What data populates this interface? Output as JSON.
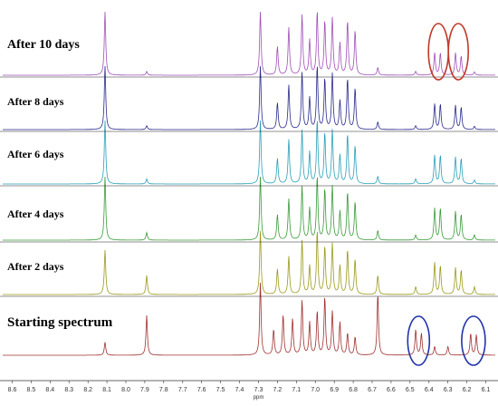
{
  "chart_data": {
    "type": "line",
    "title": "",
    "xlabel": "ppm",
    "ylabel": "",
    "xlim": [
      8.65,
      6.05
    ],
    "x_reversed": true,
    "grid": false,
    "xticks": [
      "8.6",
      "8.5",
      "8.4",
      "8.3",
      "8.2",
      "8.1",
      "8.0",
      "7.9",
      "7.8",
      "7.7",
      "7.6",
      "7.5",
      "7.4",
      "7.3",
      "7.2",
      "7.1",
      "7.0",
      "6.9",
      "6.8",
      "6.7",
      "6.6",
      "6.5",
      "6.4",
      "6.3",
      "6.2",
      "6.1"
    ],
    "series": [
      {
        "name": "After 10 days",
        "color": "#a050b8",
        "peaks": [
          {
            "ppm": 8.11,
            "height": 1.0
          },
          {
            "ppm": 7.89,
            "height": 0.06
          },
          {
            "ppm": 7.29,
            "height": 1.0
          },
          {
            "ppm": 7.2,
            "height": 0.45
          },
          {
            "ppm": 7.14,
            "height": 0.75
          },
          {
            "ppm": 7.07,
            "height": 0.95
          },
          {
            "ppm": 7.03,
            "height": 0.55
          },
          {
            "ppm": 6.99,
            "height": 1.0
          },
          {
            "ppm": 6.95,
            "height": 0.85
          },
          {
            "ppm": 6.91,
            "height": 0.9
          },
          {
            "ppm": 6.87,
            "height": 0.5
          },
          {
            "ppm": 6.83,
            "height": 0.85
          },
          {
            "ppm": 6.79,
            "height": 0.7
          },
          {
            "ppm": 6.67,
            "height": 0.12
          },
          {
            "ppm": 6.47,
            "height": 0.06
          },
          {
            "ppm": 6.37,
            "height": 0.35
          },
          {
            "ppm": 6.34,
            "height": 0.35
          },
          {
            "ppm": 6.26,
            "height": 0.35
          },
          {
            "ppm": 6.23,
            "height": 0.3
          },
          {
            "ppm": 6.16,
            "height": 0.05
          }
        ]
      },
      {
        "name": "After 8 days",
        "color": "#2a2a8c",
        "peaks": [
          {
            "ppm": 8.11,
            "height": 1.0
          },
          {
            "ppm": 7.89,
            "height": 0.06
          },
          {
            "ppm": 7.29,
            "height": 1.0
          },
          {
            "ppm": 7.2,
            "height": 0.42
          },
          {
            "ppm": 7.14,
            "height": 0.7
          },
          {
            "ppm": 7.07,
            "height": 0.9
          },
          {
            "ppm": 7.03,
            "height": 0.5
          },
          {
            "ppm": 6.99,
            "height": 1.0
          },
          {
            "ppm": 6.95,
            "height": 0.8
          },
          {
            "ppm": 6.91,
            "height": 0.88
          },
          {
            "ppm": 6.87,
            "height": 0.45
          },
          {
            "ppm": 6.83,
            "height": 0.8
          },
          {
            "ppm": 6.79,
            "height": 0.65
          },
          {
            "ppm": 6.67,
            "height": 0.12
          },
          {
            "ppm": 6.47,
            "height": 0.06
          },
          {
            "ppm": 6.37,
            "height": 0.4
          },
          {
            "ppm": 6.34,
            "height": 0.4
          },
          {
            "ppm": 6.26,
            "height": 0.38
          },
          {
            "ppm": 6.23,
            "height": 0.35
          },
          {
            "ppm": 6.16,
            "height": 0.05
          }
        ]
      },
      {
        "name": "After 6 days",
        "color": "#2aa0b8",
        "peaks": [
          {
            "ppm": 8.11,
            "height": 1.0
          },
          {
            "ppm": 7.89,
            "height": 0.08
          },
          {
            "ppm": 7.29,
            "height": 1.0
          },
          {
            "ppm": 7.2,
            "height": 0.4
          },
          {
            "ppm": 7.14,
            "height": 0.7
          },
          {
            "ppm": 7.07,
            "height": 0.85
          },
          {
            "ppm": 7.03,
            "height": 0.5
          },
          {
            "ppm": 6.99,
            "height": 1.0
          },
          {
            "ppm": 6.95,
            "height": 0.8
          },
          {
            "ppm": 6.91,
            "height": 0.85
          },
          {
            "ppm": 6.87,
            "height": 0.45
          },
          {
            "ppm": 6.83,
            "height": 0.78
          },
          {
            "ppm": 6.79,
            "height": 0.6
          },
          {
            "ppm": 6.67,
            "height": 0.12
          },
          {
            "ppm": 6.47,
            "height": 0.08
          },
          {
            "ppm": 6.37,
            "height": 0.45
          },
          {
            "ppm": 6.34,
            "height": 0.45
          },
          {
            "ppm": 6.26,
            "height": 0.42
          },
          {
            "ppm": 6.23,
            "height": 0.4
          },
          {
            "ppm": 6.16,
            "height": 0.06
          }
        ]
      },
      {
        "name": "After 4 days",
        "color": "#3a9a3a",
        "peaks": [
          {
            "ppm": 8.11,
            "height": 1.0
          },
          {
            "ppm": 7.89,
            "height": 0.12
          },
          {
            "ppm": 7.29,
            "height": 1.0
          },
          {
            "ppm": 7.2,
            "height": 0.4
          },
          {
            "ppm": 7.14,
            "height": 0.65
          },
          {
            "ppm": 7.07,
            "height": 0.85
          },
          {
            "ppm": 7.03,
            "height": 0.5
          },
          {
            "ppm": 6.99,
            "height": 1.0
          },
          {
            "ppm": 6.95,
            "height": 0.8
          },
          {
            "ppm": 6.91,
            "height": 0.85
          },
          {
            "ppm": 6.87,
            "height": 0.45
          },
          {
            "ppm": 6.83,
            "height": 0.75
          },
          {
            "ppm": 6.79,
            "height": 0.6
          },
          {
            "ppm": 6.67,
            "height": 0.15
          },
          {
            "ppm": 6.47,
            "height": 0.08
          },
          {
            "ppm": 6.37,
            "height": 0.5
          },
          {
            "ppm": 6.34,
            "height": 0.5
          },
          {
            "ppm": 6.26,
            "height": 0.45
          },
          {
            "ppm": 6.23,
            "height": 0.4
          },
          {
            "ppm": 6.16,
            "height": 0.08
          }
        ]
      },
      {
        "name": "After 2 days",
        "color": "#9a9a1a",
        "peaks": [
          {
            "ppm": 8.11,
            "height": 0.7
          },
          {
            "ppm": 7.89,
            "height": 0.3
          },
          {
            "ppm": 7.29,
            "height": 1.0
          },
          {
            "ppm": 7.2,
            "height": 0.4
          },
          {
            "ppm": 7.14,
            "height": 0.6
          },
          {
            "ppm": 7.07,
            "height": 0.85
          },
          {
            "ppm": 7.03,
            "height": 0.45
          },
          {
            "ppm": 6.99,
            "height": 1.0
          },
          {
            "ppm": 6.95,
            "height": 0.75
          },
          {
            "ppm": 6.91,
            "height": 0.8
          },
          {
            "ppm": 6.87,
            "height": 0.45
          },
          {
            "ppm": 6.83,
            "height": 0.7
          },
          {
            "ppm": 6.79,
            "height": 0.55
          },
          {
            "ppm": 6.67,
            "height": 0.3
          },
          {
            "ppm": 6.47,
            "height": 0.12
          },
          {
            "ppm": 6.37,
            "height": 0.5
          },
          {
            "ppm": 6.34,
            "height": 0.45
          },
          {
            "ppm": 6.26,
            "height": 0.42
          },
          {
            "ppm": 6.23,
            "height": 0.38
          },
          {
            "ppm": 6.16,
            "height": 0.12
          }
        ]
      },
      {
        "name": "Starting spectrum",
        "color": "#a03030",
        "peaks": [
          {
            "ppm": 8.11,
            "height": 0.18
          },
          {
            "ppm": 7.89,
            "height": 0.55
          },
          {
            "ppm": 7.29,
            "height": 1.0
          },
          {
            "ppm": 7.22,
            "height": 0.35
          },
          {
            "ppm": 7.17,
            "height": 0.55
          },
          {
            "ppm": 7.12,
            "height": 0.5
          },
          {
            "ppm": 7.07,
            "height": 0.75
          },
          {
            "ppm": 7.03,
            "height": 0.45
          },
          {
            "ppm": 6.99,
            "height": 0.6
          },
          {
            "ppm": 6.95,
            "height": 0.8
          },
          {
            "ppm": 6.91,
            "height": 0.6
          },
          {
            "ppm": 6.87,
            "height": 0.45
          },
          {
            "ppm": 6.83,
            "height": 0.3
          },
          {
            "ppm": 6.79,
            "height": 0.25
          },
          {
            "ppm": 6.67,
            "height": 0.85
          },
          {
            "ppm": 6.47,
            "height": 0.35
          },
          {
            "ppm": 6.44,
            "height": 0.3
          },
          {
            "ppm": 6.37,
            "height": 0.12
          },
          {
            "ppm": 6.3,
            "height": 0.12
          },
          {
            "ppm": 6.18,
            "height": 0.3
          },
          {
            "ppm": 6.15,
            "height": 0.28
          }
        ]
      }
    ],
    "annotations": [
      {
        "type": "ellipse",
        "trace": "After 10 days",
        "ppm": 6.35,
        "color": "#c0392b"
      },
      {
        "type": "ellipse",
        "trace": "After 10 days",
        "ppm": 6.245,
        "color": "#c0392b"
      },
      {
        "type": "ellipse",
        "trace": "Starting spectrum",
        "ppm": 6.455,
        "color": "#2233aa"
      },
      {
        "type": "ellipse",
        "trace": "Starting spectrum",
        "ppm": 6.165,
        "color": "#2233aa"
      }
    ]
  }
}
